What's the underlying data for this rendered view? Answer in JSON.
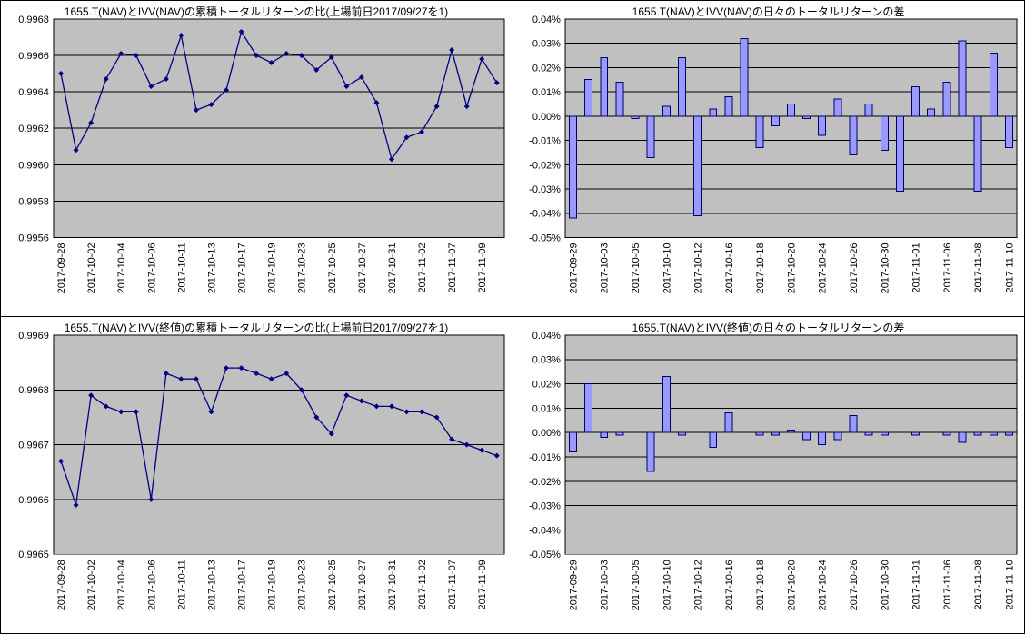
{
  "colors": {
    "plot_bg": "#C0C0C0",
    "grid": "#000000",
    "frame": "#000000",
    "line_series": "#000080",
    "bar_fill": "#9999FF",
    "bar_border": "#000066",
    "text": "#000000",
    "page_bg": "#FFFFFF"
  },
  "chart_data": [
    {
      "id": "cumulative-ratio-nav-nav",
      "type": "line",
      "title": "1655.T(NAV)とIVV(NAV)の累積トータルリターンの比(上場前日2017/09/27を1)",
      "x": [
        "2017-09-28",
        "2017-09-29",
        "2017-10-02",
        "2017-10-03",
        "2017-10-04",
        "2017-10-05",
        "2017-10-06",
        "2017-10-10",
        "2017-10-11",
        "2017-10-12",
        "2017-10-13",
        "2017-10-16",
        "2017-10-17",
        "2017-10-18",
        "2017-10-19",
        "2017-10-20",
        "2017-10-23",
        "2017-10-24",
        "2017-10-25",
        "2017-10-26",
        "2017-10-27",
        "2017-10-30",
        "2017-10-31",
        "2017-11-01",
        "2017-11-02",
        "2017-11-06",
        "2017-11-07",
        "2017-11-08",
        "2017-11-09",
        "2017-11-10"
      ],
      "values": [
        0.9965,
        0.99608,
        0.99623,
        0.99647,
        0.99661,
        0.9966,
        0.99643,
        0.99647,
        0.99671,
        0.9963,
        0.99633,
        0.99641,
        0.99673,
        0.9966,
        0.99656,
        0.99661,
        0.9966,
        0.99652,
        0.99659,
        0.99643,
        0.99648,
        0.99634,
        0.99603,
        0.99615,
        0.99618,
        0.99632,
        0.99663,
        0.99632,
        0.99658,
        0.99645
      ],
      "ylim": [
        0.9956,
        0.9968
      ],
      "ytick_labels": [
        "0.9968",
        "0.9966",
        "0.9964",
        "0.9962",
        "0.9960",
        "0.9958",
        "0.9956"
      ],
      "ytick_values": [
        0.9968,
        0.9966,
        0.9964,
        0.9962,
        0.996,
        0.9958,
        0.9956
      ],
      "xtick_every": 2,
      "grid": true,
      "legend": false,
      "marker": "diamond"
    },
    {
      "id": "daily-diff-nav-nav",
      "type": "bar",
      "title": "1655.T(NAV)とIVV(NAV)の日々のトータルリターンの差",
      "unit": "%",
      "x": [
        "2017-09-29",
        "2017-10-02",
        "2017-10-03",
        "2017-10-04",
        "2017-10-05",
        "2017-10-06",
        "2017-10-10",
        "2017-10-11",
        "2017-10-12",
        "2017-10-13",
        "2017-10-16",
        "2017-10-17",
        "2017-10-18",
        "2017-10-19",
        "2017-10-20",
        "2017-10-23",
        "2017-10-24",
        "2017-10-25",
        "2017-10-26",
        "2017-10-27",
        "2017-10-30",
        "2017-10-31",
        "2017-11-01",
        "2017-11-02",
        "2017-11-06",
        "2017-11-07",
        "2017-11-08",
        "2017-11-09",
        "2017-11-10"
      ],
      "values": [
        -0.042,
        0.015,
        0.024,
        0.014,
        -0.001,
        -0.017,
        0.004,
        0.024,
        -0.041,
        0.003,
        0.008,
        0.032,
        -0.013,
        -0.004,
        0.005,
        -0.001,
        -0.008,
        0.007,
        -0.016,
        0.005,
        -0.014,
        -0.031,
        0.012,
        0.003,
        0.014,
        0.031,
        -0.031,
        0.026,
        -0.013
      ],
      "ylim": [
        -0.05,
        0.04
      ],
      "ytick_labels": [
        "0.04%",
        "0.03%",
        "0.02%",
        "0.01%",
        "0.00%",
        "-0.01%",
        "-0.02%",
        "-0.03%",
        "-0.04%",
        "-0.05%"
      ],
      "ytick_values": [
        0.04,
        0.03,
        0.02,
        0.01,
        0.0,
        -0.01,
        -0.02,
        -0.03,
        -0.04,
        -0.05
      ],
      "xtick_every": 2,
      "grid": true,
      "legend": false
    },
    {
      "id": "cumulative-ratio-nav-close",
      "type": "line",
      "title": "1655.T(NAV)とIVV(終値)の累積トータルリターンの比(上場前日2017/09/27を1)",
      "x": [
        "2017-09-28",
        "2017-09-29",
        "2017-10-02",
        "2017-10-03",
        "2017-10-04",
        "2017-10-05",
        "2017-10-06",
        "2017-10-10",
        "2017-10-11",
        "2017-10-12",
        "2017-10-13",
        "2017-10-16",
        "2017-10-17",
        "2017-10-18",
        "2017-10-19",
        "2017-10-20",
        "2017-10-23",
        "2017-10-24",
        "2017-10-25",
        "2017-10-26",
        "2017-10-27",
        "2017-10-30",
        "2017-10-31",
        "2017-11-01",
        "2017-11-02",
        "2017-11-06",
        "2017-11-07",
        "2017-11-08",
        "2017-11-09",
        "2017-11-10"
      ],
      "values": [
        0.99667,
        0.99659,
        0.99679,
        0.99677,
        0.99676,
        0.99676,
        0.9966,
        0.99683,
        0.99682,
        0.99682,
        0.99676,
        0.99684,
        0.99684,
        0.99683,
        0.99682,
        0.99683,
        0.9968,
        0.99675,
        0.99672,
        0.99679,
        0.99678,
        0.99677,
        0.99677,
        0.99676,
        0.99676,
        0.99675,
        0.99671,
        0.9967,
        0.99669,
        0.99668
      ],
      "ylim": [
        0.9965,
        0.9969
      ],
      "ytick_labels": [
        "0.9969",
        "0.9968",
        "0.9967",
        "0.9966",
        "0.9965"
      ],
      "ytick_values": [
        0.9969,
        0.9968,
        0.9967,
        0.9966,
        0.9965
      ],
      "xtick_every": 2,
      "grid": true,
      "legend": false,
      "marker": "diamond"
    },
    {
      "id": "daily-diff-nav-close",
      "type": "bar",
      "title": "1655.T(NAV)とIVV(終値)の日々のトータルリターンの差",
      "unit": "%",
      "x": [
        "2017-09-29",
        "2017-10-02",
        "2017-10-03",
        "2017-10-04",
        "2017-10-05",
        "2017-10-06",
        "2017-10-10",
        "2017-10-11",
        "2017-10-12",
        "2017-10-13",
        "2017-10-16",
        "2017-10-17",
        "2017-10-18",
        "2017-10-19",
        "2017-10-20",
        "2017-10-23",
        "2017-10-24",
        "2017-10-25",
        "2017-10-26",
        "2017-10-27",
        "2017-10-30",
        "2017-10-31",
        "2017-11-01",
        "2017-11-02",
        "2017-11-06",
        "2017-11-07",
        "2017-11-08",
        "2017-11-09",
        "2017-11-10"
      ],
      "values": [
        -0.008,
        0.02,
        -0.002,
        -0.001,
        0.0,
        -0.016,
        0.023,
        -0.001,
        0.0,
        -0.006,
        0.008,
        0.0,
        -0.001,
        -0.001,
        0.001,
        -0.003,
        -0.005,
        -0.003,
        0.007,
        -0.001,
        -0.001,
        0.0,
        -0.001,
        0.0,
        -0.001,
        -0.004,
        -0.001,
        -0.001,
        -0.001
      ],
      "ylim": [
        -0.05,
        0.04
      ],
      "ytick_labels": [
        "0.04%",
        "0.03%",
        "0.02%",
        "0.01%",
        "0.00%",
        "-0.01%",
        "-0.02%",
        "-0.03%",
        "-0.04%",
        "-0.05%"
      ],
      "ytick_values": [
        0.04,
        0.03,
        0.02,
        0.01,
        0.0,
        -0.01,
        -0.02,
        -0.03,
        -0.04,
        -0.05
      ],
      "xtick_every": 2,
      "grid": true,
      "legend": false
    }
  ]
}
